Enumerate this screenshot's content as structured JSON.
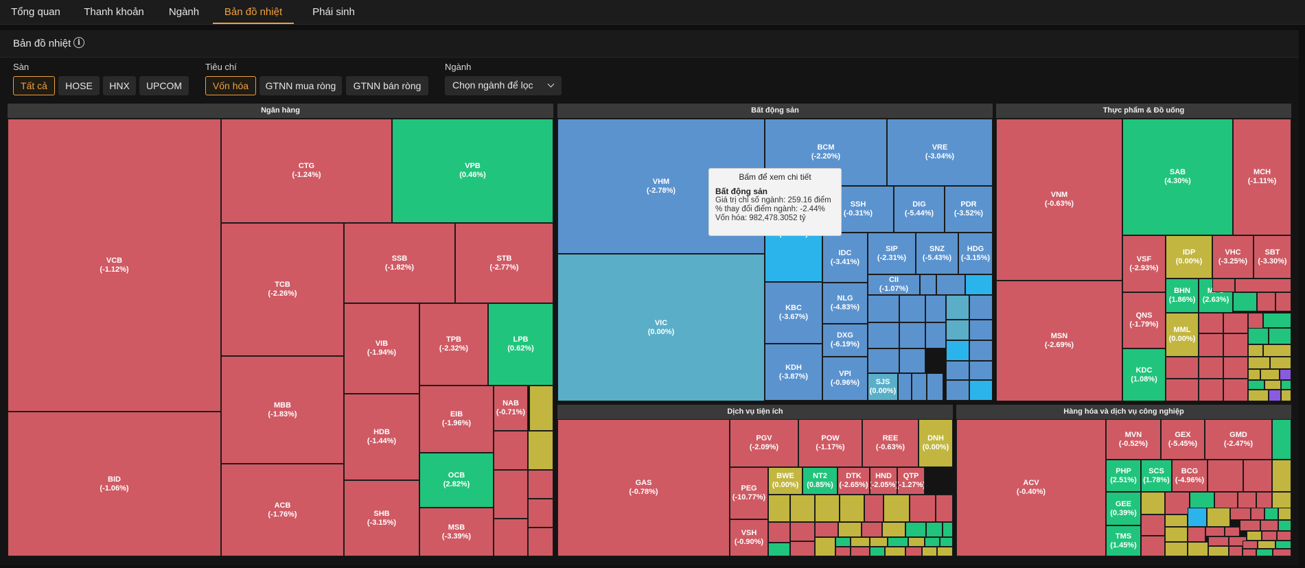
{
  "nav": {
    "tabs": [
      {
        "label": "Tổng quan",
        "active": false
      },
      {
        "label": "Thanh khoản",
        "active": false
      },
      {
        "label": "Ngành",
        "active": false
      },
      {
        "label": "Bản đồ nhiệt",
        "active": true
      },
      {
        "label": "Phái sinh",
        "active": false
      }
    ]
  },
  "header": {
    "title": "Bản đồ nhiệt",
    "info_icon": "info-icon"
  },
  "filters": {
    "exchange_label": "Sàn",
    "exchanges": [
      {
        "label": "Tất cả",
        "active": true
      },
      {
        "label": "HOSE",
        "active": false
      },
      {
        "label": "HNX",
        "active": false
      },
      {
        "label": "UPCOM",
        "active": false
      }
    ],
    "criteria_label": "Tiêu chí",
    "criteria": [
      {
        "label": "Vốn hóa",
        "active": true
      },
      {
        "label": "GTNN mua ròng",
        "active": false
      },
      {
        "label": "GTNN bán ròng",
        "active": false
      }
    ],
    "industry_label": "Ngành",
    "industry_select": "Chọn ngành để lọc"
  },
  "colors": {
    "red": "#cf5a64",
    "green": "#21c47c",
    "yellow": "#c2b640",
    "blue": "#5b93cf",
    "teal": "#5aaec8",
    "cyan": "#2bb4ec",
    "purple": "#8a5be0",
    "accent": "#f0a03c"
  },
  "heatmap": {
    "groups": [
      {
        "name": "Ngân hàng",
        "tiles": [
          {
            "code": "VCB",
            "change": "(-1.12%)",
            "color": "red"
          },
          {
            "code": "BID",
            "change": "(-1.06%)",
            "color": "red"
          },
          {
            "code": "CTG",
            "change": "(-1.24%)",
            "color": "red"
          },
          {
            "code": "VPB",
            "change": "(0.46%)",
            "color": "green"
          },
          {
            "code": "TCB",
            "change": "(-2.26%)",
            "color": "red"
          },
          {
            "code": "SSB",
            "change": "(-1.82%)",
            "color": "red"
          },
          {
            "code": "STB",
            "change": "(-2.77%)",
            "color": "red"
          },
          {
            "code": "MBB",
            "change": "(-1.83%)",
            "color": "red"
          },
          {
            "code": "ACB",
            "change": "(-1.76%)",
            "color": "red"
          },
          {
            "code": "VIB",
            "change": "(-1.94%)",
            "color": "red"
          },
          {
            "code": "TPB",
            "change": "(-2.32%)",
            "color": "red"
          },
          {
            "code": "LPB",
            "change": "(0.62%)",
            "color": "green"
          },
          {
            "code": "HDB",
            "change": "(-1.44%)",
            "color": "red"
          },
          {
            "code": "EIB",
            "change": "(-1.96%)",
            "color": "red"
          },
          {
            "code": "NAB",
            "change": "(-0.71%)",
            "color": "red"
          },
          {
            "code": "OCB",
            "change": "(2.82%)",
            "color": "green"
          },
          {
            "code": "SHB",
            "change": "(-3.15%)",
            "color": "red"
          },
          {
            "code": "MSB",
            "change": "(-3.39%)",
            "color": "red"
          }
        ]
      },
      {
        "name": "Bất động sản",
        "tiles": [
          {
            "code": "VHM",
            "change": "(-2.78%)",
            "color": "blue"
          },
          {
            "code": "VIC",
            "change": "(0.00%)",
            "color": "teal"
          },
          {
            "code": "BCM",
            "change": "(-2.20%)",
            "color": "blue"
          },
          {
            "code": "VRE",
            "change": "(-3.04%)",
            "color": "blue"
          },
          {
            "code": "SSH",
            "change": "(-0.31%)",
            "color": "blue"
          },
          {
            "code": "DIG",
            "change": "(-5.44%)",
            "color": "blue"
          },
          {
            "code": "PDR",
            "change": "(-3.52%)",
            "color": "blue"
          },
          {
            "code": "",
            "change": "(-6.82%)",
            "color": "cyan"
          },
          {
            "code": "IDC",
            "change": "(-3.41%)",
            "color": "blue"
          },
          {
            "code": "SIP",
            "change": "(-2.31%)",
            "color": "blue"
          },
          {
            "code": "SNZ",
            "change": "(-5.43%)",
            "color": "blue"
          },
          {
            "code": "HDG",
            "change": "(-3.15%)",
            "color": "blue"
          },
          {
            "code": "CII",
            "change": "(-1.07%)",
            "color": "blue"
          },
          {
            "code": "KBC",
            "change": "(-3.67%)",
            "color": "blue"
          },
          {
            "code": "NLG",
            "change": "(-4.83%)",
            "color": "blue"
          },
          {
            "code": "DXG",
            "change": "(-6.19%)",
            "color": "blue"
          },
          {
            "code": "KDH",
            "change": "(-3.87%)",
            "color": "blue"
          },
          {
            "code": "VPI",
            "change": "(-0.96%)",
            "color": "blue"
          },
          {
            "code": "SJS",
            "change": "(0.00%)",
            "color": "teal"
          }
        ]
      },
      {
        "name": "Thực phẩm & Đồ uống",
        "tiles": [
          {
            "code": "VNM",
            "change": "(-0.63%)",
            "color": "red"
          },
          {
            "code": "MSN",
            "change": "(-2.69%)",
            "color": "red"
          },
          {
            "code": "SAB",
            "change": "(4.30%)",
            "color": "green"
          },
          {
            "code": "MCH",
            "change": "(-1.11%)",
            "color": "red"
          },
          {
            "code": "VSF",
            "change": "(-2.93%)",
            "color": "red"
          },
          {
            "code": "IDP",
            "change": "(0.00%)",
            "color": "yellow"
          },
          {
            "code": "VHC",
            "change": "(-3.25%)",
            "color": "red"
          },
          {
            "code": "SBT",
            "change": "(-3.30%)",
            "color": "red"
          },
          {
            "code": "BHN",
            "change": "(1.86%)",
            "color": "green"
          },
          {
            "code": "MPC",
            "change": "(2.63%)",
            "color": "green"
          },
          {
            "code": "QNS",
            "change": "(-1.79%)",
            "color": "red"
          },
          {
            "code": "MML",
            "change": "(0.00%)",
            "color": "yellow"
          },
          {
            "code": "KDC",
            "change": "(1.08%)",
            "color": "green"
          }
        ]
      },
      {
        "name": "Dịch vụ tiện ích",
        "tiles": [
          {
            "code": "GAS",
            "change": "(-0.78%)",
            "color": "red"
          },
          {
            "code": "PGV",
            "change": "(-2.09%)",
            "color": "red"
          },
          {
            "code": "POW",
            "change": "(-1.17%)",
            "color": "red"
          },
          {
            "code": "REE",
            "change": "(-0.63%)",
            "color": "red"
          },
          {
            "code": "DNH",
            "change": "(0.00%)",
            "color": "yellow"
          },
          {
            "code": "PEG",
            "change": "(-10.77%)",
            "color": "red"
          },
          {
            "code": "BWE",
            "change": "(0.00%)",
            "color": "yellow"
          },
          {
            "code": "NT2",
            "change": "(0.85%)",
            "color": "green"
          },
          {
            "code": "DTK",
            "change": "(-2.65%)",
            "color": "red"
          },
          {
            "code": "HND",
            "change": "(-2.05%)",
            "color": "red"
          },
          {
            "code": "QTP",
            "change": "(-1.27%)",
            "color": "red"
          },
          {
            "code": "VSH",
            "change": "(-0.90%)",
            "color": "red"
          }
        ]
      },
      {
        "name": "Hàng hóa và dịch vụ công nghiệp",
        "tiles": [
          {
            "code": "ACV",
            "change": "(-0.40%)",
            "color": "red"
          },
          {
            "code": "MVN",
            "change": "(-0.52%)",
            "color": "red"
          },
          {
            "code": "GEX",
            "change": "(-5.45%)",
            "color": "red"
          },
          {
            "code": "GMD",
            "change": "(-2.47%)",
            "color": "red"
          },
          {
            "code": "PHP",
            "change": "(2.51%)",
            "color": "green"
          },
          {
            "code": "SCS",
            "change": "(1.78%)",
            "color": "green"
          },
          {
            "code": "BCG",
            "change": "(-4.96%)",
            "color": "red"
          },
          {
            "code": "GEE",
            "change": "(0.39%)",
            "color": "green"
          },
          {
            "code": "TMS",
            "change": "(1.45%)",
            "color": "green"
          }
        ]
      }
    ]
  },
  "tooltip": {
    "hint": "Bấm để xem chi tiết",
    "title": "Bất động sản",
    "lines": [
      "Giá trị chỉ số ngành: 259.16 điểm",
      "% thay đổi điểm ngành: -2.44%",
      "Vốn hóa: 982,478.3052 tỷ"
    ]
  }
}
